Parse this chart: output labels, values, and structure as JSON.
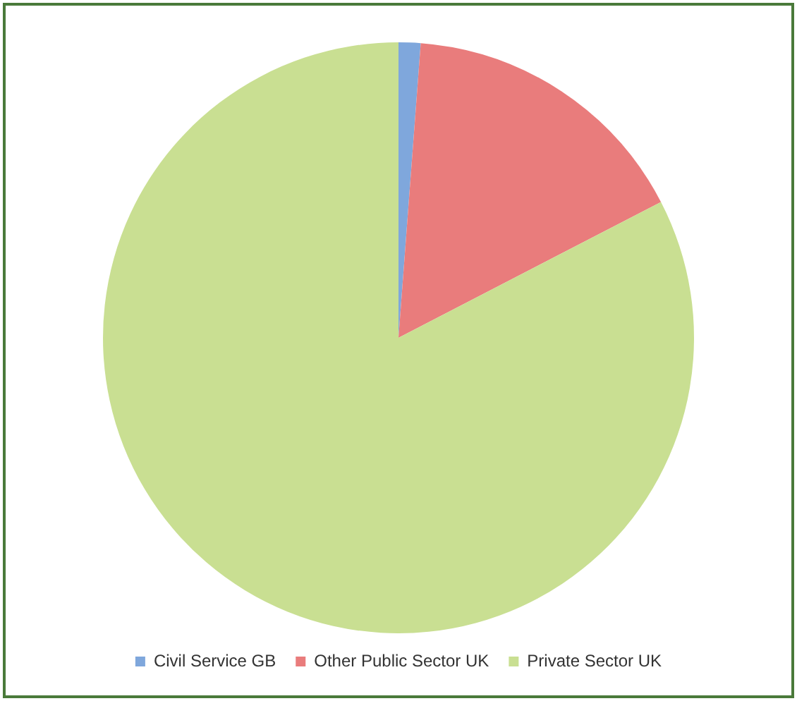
{
  "chart_data": {
    "type": "pie",
    "categories": [
      "Civil Service GB",
      "Other Public Sector UK",
      "Private Sector UK"
    ],
    "values": [
      1.2,
      16.2,
      82.6
    ],
    "colors": [
      "#7fa7dc",
      "#e97c7c",
      "#c9df92"
    ],
    "legend": "bottom"
  }
}
